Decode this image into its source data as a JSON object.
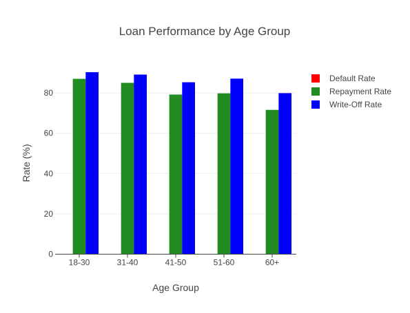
{
  "chart_data": {
    "type": "bar",
    "title": "Loan Performance by Age Group",
    "xlabel": "Age Group",
    "ylabel": "Rate (%)",
    "categories": [
      "18-30",
      "31-40",
      "41-50",
      "51-60",
      "60+"
    ],
    "ylim": [
      0,
      93
    ],
    "yticks": [
      0,
      20,
      40,
      60,
      80
    ],
    "grid": true,
    "legend_position": "top-right",
    "series": [
      {
        "name": "Default Rate",
        "color": "#ff0000",
        "values": [
          0,
          0,
          0,
          0,
          0
        ]
      },
      {
        "name": "Repayment Rate",
        "color": "#228b22",
        "values": [
          87,
          85,
          79.2,
          79.8,
          71.6
        ]
      },
      {
        "name": "Write-Off Rate",
        "color": "#0000ff",
        "values": [
          90.3,
          89.1,
          85.3,
          87.1,
          79.9
        ]
      }
    ]
  }
}
